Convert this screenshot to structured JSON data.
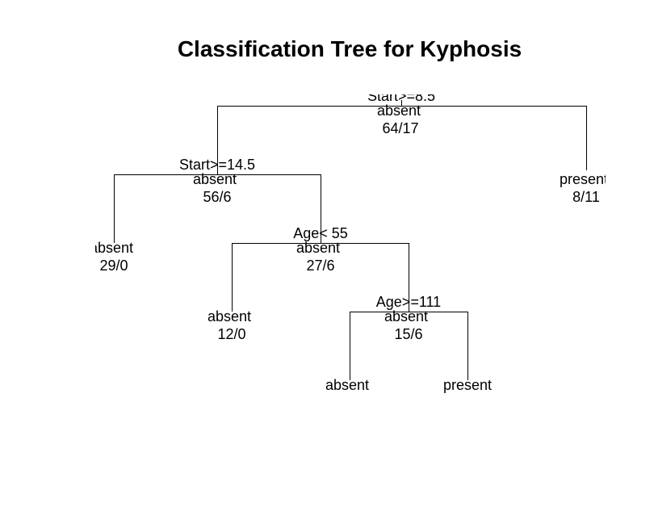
{
  "title": "Classification Tree for Kyphosis",
  "nodes": {
    "root": {
      "split": "Start>=8.5",
      "class": "absent",
      "counts": "64/17"
    },
    "n2": {
      "split": "Start>=14.5",
      "class": "absent",
      "counts": "56/6"
    },
    "n3": {
      "class": "present",
      "counts": "8/11"
    },
    "n4": {
      "class": "absent",
      "counts": "29/0"
    },
    "n5": {
      "split": "Age< 55",
      "class": "absent",
      "counts": "27/6"
    },
    "n10": {
      "class": "absent",
      "counts": "12/0"
    },
    "n11": {
      "split": "Age>=111",
      "class": "absent",
      "counts": "15/6"
    },
    "n22": {
      "class": "absent"
    },
    "n23": {
      "class": "present"
    }
  }
}
